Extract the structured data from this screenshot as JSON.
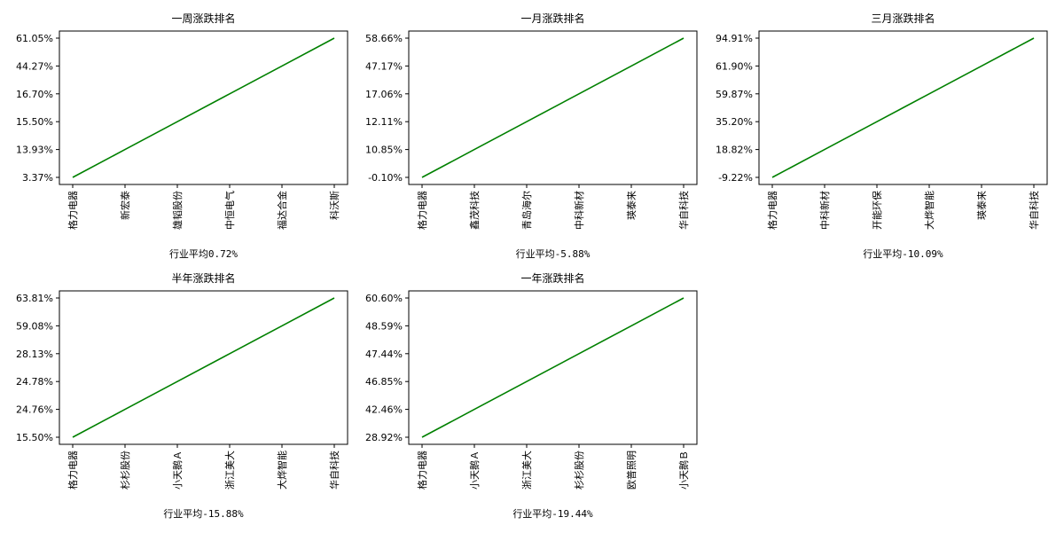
{
  "colors": {
    "line": "#008000",
    "axis": "#000000",
    "background": "#ffffff"
  },
  "chart_data": [
    {
      "type": "line",
      "title": "一周涨跌排名",
      "xlabel": "行业平均0.72%",
      "ylabel": "",
      "categories": [
        "格力电器",
        "新宏泰",
        "雄韬股份",
        "中恒电气",
        "福达合金",
        "科沃斯"
      ],
      "ytick_labels": [
        "3.37%",
        "13.93%",
        "15.50%",
        "16.70%",
        "44.27%",
        "61.05%"
      ],
      "values": [
        0,
        1,
        2,
        3,
        4,
        5
      ],
      "grid": false
    },
    {
      "type": "line",
      "title": "一月涨跌排名",
      "xlabel": "行业平均-5.88%",
      "ylabel": "",
      "categories": [
        "格力电器",
        "鑫茂科技",
        "青岛海尔",
        "中科新材",
        "瑛泰来",
        "华自科技"
      ],
      "ytick_labels": [
        "-0.10%",
        "10.85%",
        "12.11%",
        "17.06%",
        "47.17%",
        "58.66%"
      ],
      "values": [
        0,
        1,
        2,
        3,
        4,
        5
      ],
      "grid": false
    },
    {
      "type": "line",
      "title": "三月涨跌排名",
      "xlabel": "行业平均-10.09%",
      "ylabel": "",
      "categories": [
        "格力电器",
        "中科新材",
        "开能环保",
        "大烨智能",
        "瑛泰来",
        "华自科技"
      ],
      "ytick_labels": [
        "-9.22%",
        "18.82%",
        "35.20%",
        "59.87%",
        "61.90%",
        "94.91%"
      ],
      "values": [
        0,
        1,
        2,
        3,
        4,
        5
      ],
      "grid": false
    },
    {
      "type": "line",
      "title": "半年涨跌排名",
      "xlabel": "行业平均-15.88%",
      "ylabel": "",
      "categories": [
        "格力电器",
        "杉杉股份",
        "小天鹅Ａ",
        "浙江美大",
        "大烨智能",
        "华自科技"
      ],
      "ytick_labels": [
        "15.50%",
        "24.76%",
        "24.78%",
        "28.13%",
        "59.08%",
        "63.81%"
      ],
      "values": [
        0,
        1,
        2,
        3,
        4,
        5
      ],
      "grid": false
    },
    {
      "type": "line",
      "title": "一年涨跌排名",
      "xlabel": "行业平均-19.44%",
      "ylabel": "",
      "categories": [
        "格力电器",
        "小天鹅Ａ",
        "浙江美大",
        "杉杉股份",
        "欧普照明",
        "小天鹅Ｂ"
      ],
      "ytick_labels": [
        "28.92%",
        "42.46%",
        "46.85%",
        "47.44%",
        "48.59%",
        "60.60%"
      ],
      "values": [
        0,
        1,
        2,
        3,
        4,
        5
      ],
      "grid": false
    }
  ]
}
